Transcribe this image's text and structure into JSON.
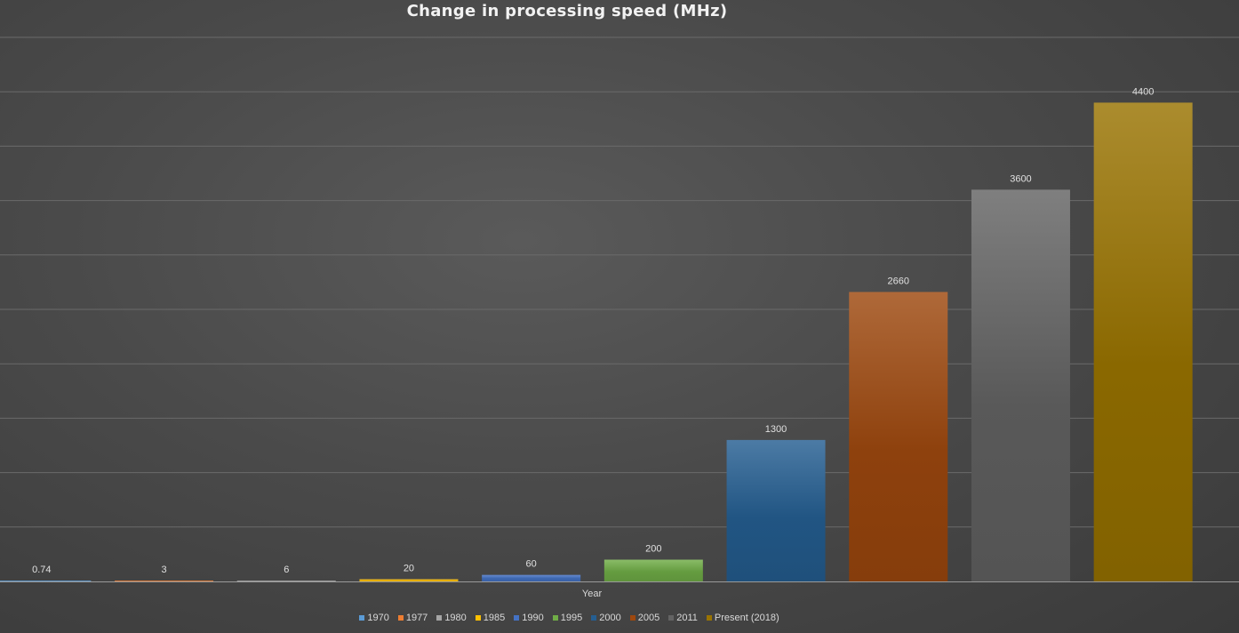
{
  "chart_data": {
    "type": "bar",
    "title": "Change in processing speed (MHz)",
    "xlabel": "Year",
    "ylabel": "",
    "categories": [
      "1970",
      "1977",
      "1980",
      "1985",
      "1990",
      "1995",
      "2000",
      "2005",
      "2011",
      "Present (2018)"
    ],
    "values": [
      0.74,
      3,
      6,
      20,
      60,
      200,
      1300,
      2660,
      3600,
      4400
    ],
    "data_labels": [
      "0.74",
      "3",
      "6",
      "20",
      "60",
      "200",
      "1300",
      "2660",
      "3600",
      "4400"
    ],
    "ylim": [
      0,
      5000
    ],
    "grid": true,
    "legend_position": "bottom",
    "colors": [
      "#5b9bd5",
      "#ed7d31",
      "#a5a5a5",
      "#ffc000",
      "#4472c4",
      "#70ad47",
      "#255e91",
      "#9e480e",
      "#636363",
      "#997300"
    ]
  }
}
